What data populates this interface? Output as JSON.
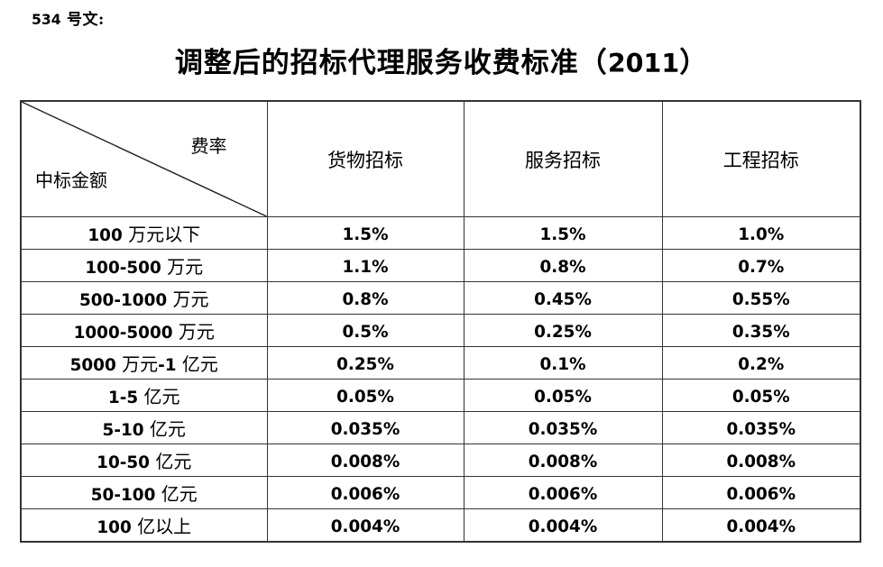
{
  "doc": {
    "doc_number": "534 号文:",
    "title": "调整后的招标代理服务收费标准（2011）"
  },
  "table": {
    "corner": {
      "top_right": "费率",
      "bottom_left": "中标金额"
    },
    "columns": [
      "货物招标",
      "服务招标",
      "工程招标"
    ],
    "rows": [
      {
        "label": "100 万元以下",
        "values": [
          "1.5%",
          "1.5%",
          "1.0%"
        ]
      },
      {
        "label": "100-500 万元",
        "values": [
          "1.1%",
          "0.8%",
          "0.7%"
        ]
      },
      {
        "label": "500-1000 万元",
        "values": [
          "0.8%",
          "0.45%",
          "0.55%"
        ]
      },
      {
        "label": "1000-5000 万元",
        "values": [
          "0.5%",
          "0.25%",
          "0.35%"
        ]
      },
      {
        "label": "5000 万元-1 亿元",
        "values": [
          "0.25%",
          "0.1%",
          "0.2%"
        ]
      },
      {
        "label": "1-5 亿元",
        "values": [
          "0.05%",
          "0.05%",
          "0.05%"
        ]
      },
      {
        "label": "5-10 亿元",
        "values": [
          "0.035%",
          "0.035%",
          "0.035%"
        ]
      },
      {
        "label": "10-50 亿元",
        "values": [
          "0.008%",
          "0.008%",
          "0.008%"
        ]
      },
      {
        "label": "50-100 亿元",
        "values": [
          "0.006%",
          "0.006%",
          "0.006%"
        ]
      },
      {
        "label": "100 亿以上",
        "values": [
          "0.004%",
          "0.004%",
          "0.004%"
        ]
      }
    ]
  },
  "colors": {
    "text": "#000000",
    "border": "#333333",
    "background": "#ffffff"
  }
}
